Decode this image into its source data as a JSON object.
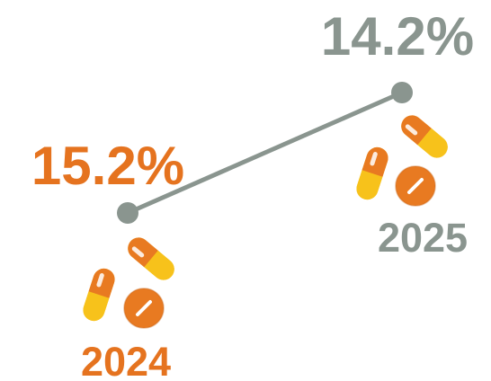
{
  "chart_data": {
    "type": "line",
    "title": "",
    "xlabel": "",
    "ylabel": "",
    "grid": false,
    "x": [
      "2024",
      "2025"
    ],
    "series": [
      {
        "values": [
          15.2,
          14.2
        ],
        "value_labels": [
          "15.2%",
          "14.2%"
        ]
      }
    ]
  },
  "colors": {
    "orange": "#e5731f",
    "gray": "#8a958f",
    "capsule_yellow": "#f7c21b",
    "pill_orange": "#e87a21"
  },
  "icons": [
    "capsule-icon",
    "pill-tablet-icon"
  ]
}
